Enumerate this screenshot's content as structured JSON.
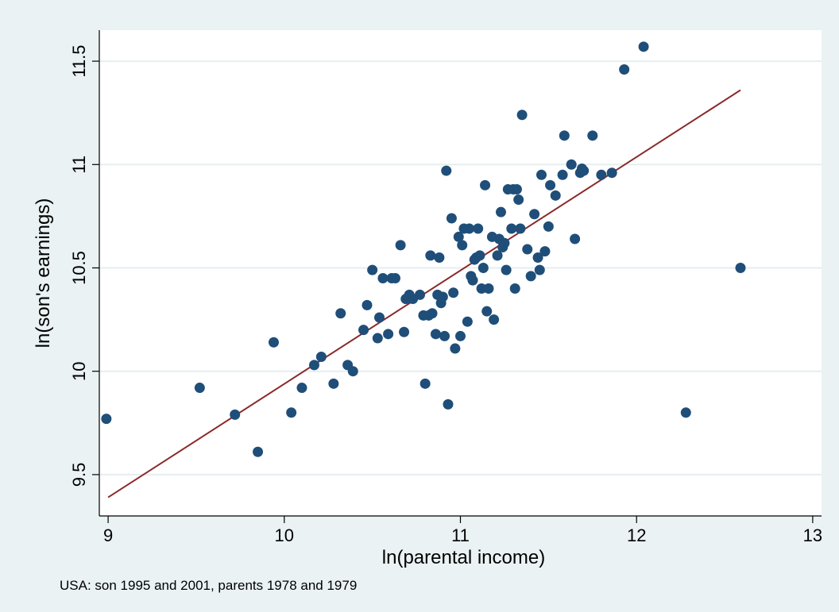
{
  "colors": {
    "outer_background": "#eaf2f3",
    "plot_background": "#ffffff",
    "gridline": "#e6eef0",
    "marker": "#1f4e79",
    "fit_line": "#8b2a2a",
    "axis": "#000000"
  },
  "chart_data": {
    "type": "scatter",
    "title": "",
    "xlabel": "ln(parental income)",
    "ylabel": "ln(son's earnings)",
    "note": "USA: son 1995 and 2001, parents 1978 and 1979",
    "xlim": [
      8.95,
      13.05
    ],
    "ylim": [
      9.3,
      11.65
    ],
    "x_ticks": [
      9,
      10,
      11,
      12,
      13
    ],
    "x_tick_labels": [
      "9",
      "10",
      "11",
      "12",
      "13"
    ],
    "y_ticks": [
      9.5,
      10,
      10.5,
      11,
      11.5
    ],
    "y_tick_labels": [
      "9.5",
      "10",
      "10.5",
      "11",
      "11.5"
    ],
    "grid": "horizontal",
    "legend": "none",
    "fit_line": {
      "x": [
        9.0,
        12.59
      ],
      "y": [
        9.39,
        11.36
      ]
    },
    "points": {
      "x": [
        8.99,
        9.52,
        9.72,
        9.85,
        9.94,
        10.04,
        10.1,
        10.17,
        10.21,
        10.28,
        10.32,
        10.36,
        10.39,
        10.45,
        10.47,
        10.5,
        10.53,
        10.54,
        10.56,
        10.59,
        10.61,
        10.63,
        10.66,
        10.68,
        10.69,
        10.71,
        10.73,
        10.77,
        10.79,
        10.8,
        10.82,
        10.83,
        10.84,
        10.86,
        10.87,
        10.88,
        10.89,
        10.9,
        10.91,
        10.92,
        10.93,
        10.95,
        10.96,
        10.97,
        10.99,
        11.0,
        11.01,
        11.02,
        11.04,
        11.05,
        11.06,
        11.07,
        11.08,
        11.09,
        11.1,
        11.11,
        11.12,
        11.13,
        11.14,
        11.15,
        11.16,
        11.18,
        11.19,
        11.21,
        11.22,
        11.23,
        11.24,
        11.25,
        11.26,
        11.27,
        11.29,
        11.3,
        11.31,
        11.32,
        11.33,
        11.34,
        11.35,
        11.38,
        11.4,
        11.42,
        11.44,
        11.45,
        11.46,
        11.48,
        11.5,
        11.51,
        11.54,
        11.58,
        11.59,
        11.63,
        11.65,
        11.68,
        11.69,
        11.7,
        11.75,
        11.8,
        11.86,
        11.93,
        12.04,
        12.28,
        12.59
      ],
      "y": [
        9.77,
        9.92,
        9.79,
        9.61,
        10.14,
        9.8,
        9.92,
        10.03,
        10.07,
        9.94,
        10.28,
        10.03,
        10.0,
        10.2,
        10.32,
        10.49,
        10.16,
        10.26,
        10.45,
        10.18,
        10.45,
        10.45,
        10.61,
        10.19,
        10.35,
        10.37,
        10.35,
        10.37,
        10.27,
        9.94,
        10.27,
        10.56,
        10.28,
        10.18,
        10.37,
        10.55,
        10.33,
        10.36,
        10.17,
        10.97,
        9.84,
        10.74,
        10.38,
        10.11,
        10.65,
        10.17,
        10.61,
        10.69,
        10.24,
        10.69,
        10.46,
        10.44,
        10.54,
        10.55,
        10.69,
        10.56,
        10.4,
        10.5,
        10.9,
        10.29,
        10.4,
        10.65,
        10.25,
        10.56,
        10.64,
        10.77,
        10.6,
        10.62,
        10.49,
        10.88,
        10.69,
        10.88,
        10.4,
        10.88,
        10.83,
        10.69,
        11.24,
        10.59,
        10.46,
        10.76,
        10.55,
        10.49,
        10.95,
        10.58,
        10.7,
        10.9,
        10.85,
        10.95,
        11.14,
        11.0,
        10.64,
        10.96,
        10.98,
        10.97,
        11.14,
        10.95,
        10.96,
        11.46,
        11.57,
        9.8,
        10.5
      ]
    }
  }
}
